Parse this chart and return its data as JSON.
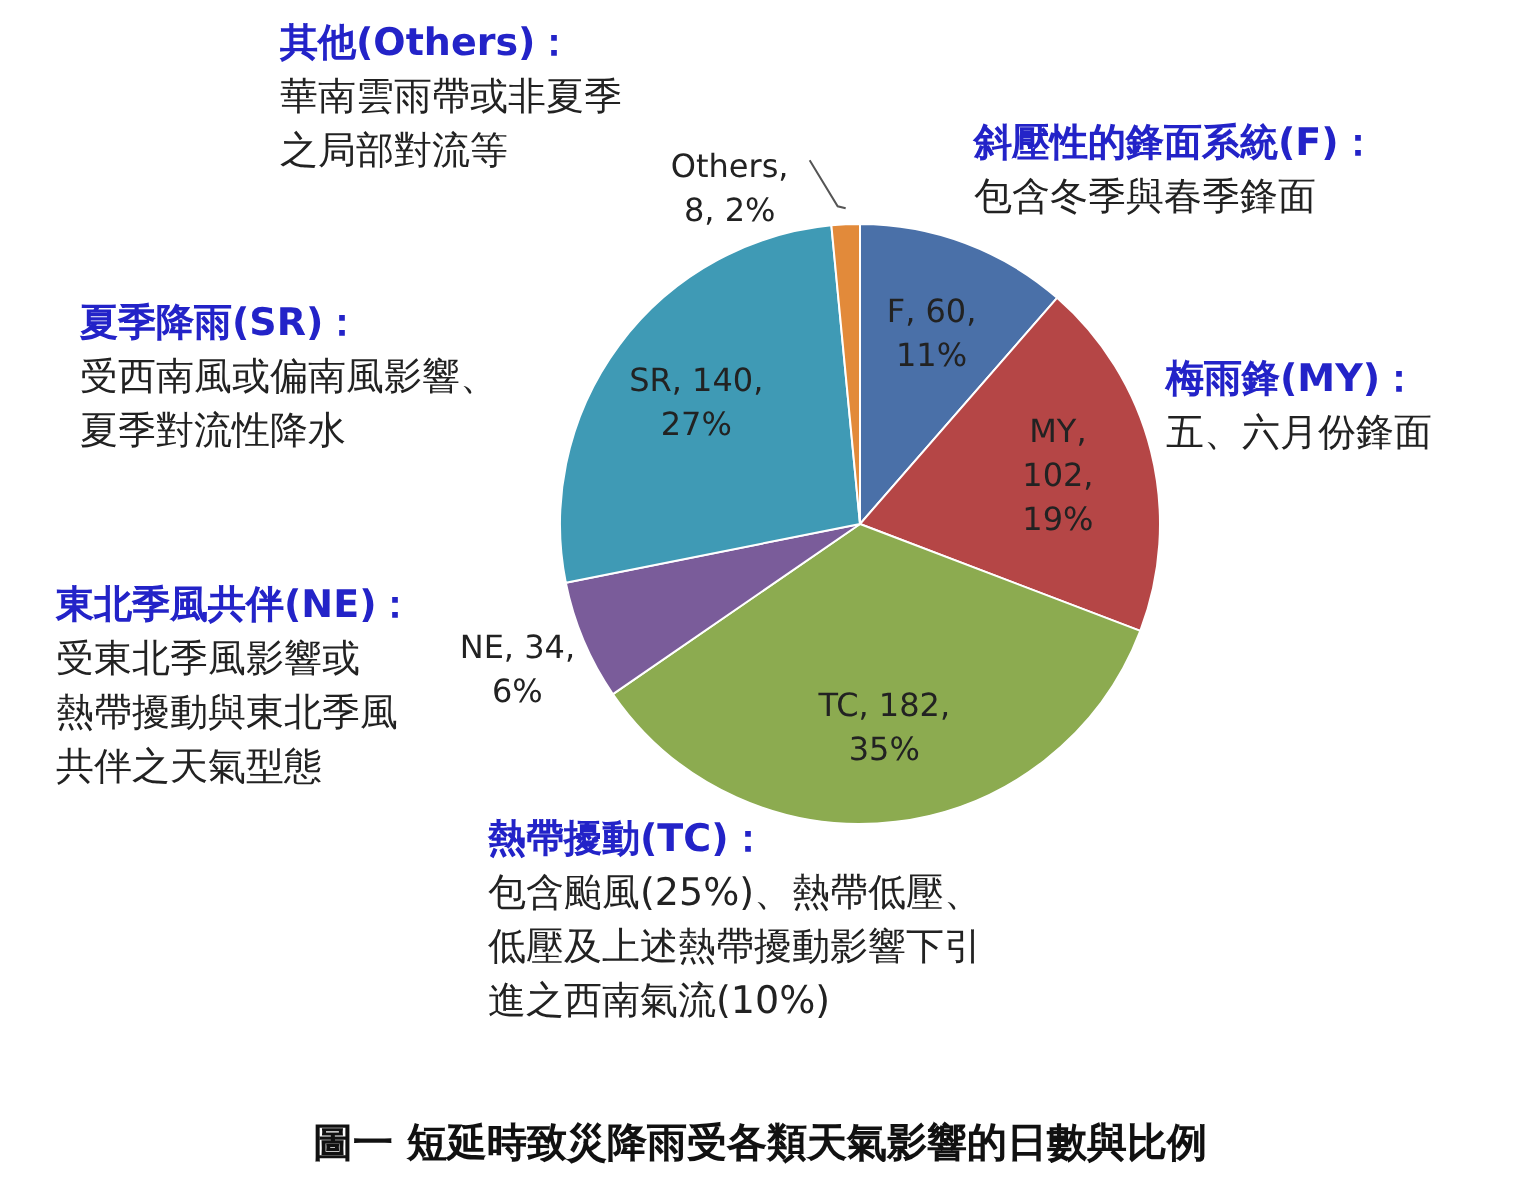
{
  "chart_data": {
    "type": "pie",
    "title": "圖一 短延時致災降雨受各類天氣影響的日數與比例",
    "categories": [
      "F",
      "MY",
      "TC",
      "NE",
      "SR",
      "Others"
    ],
    "values": [
      60,
      102,
      182,
      34,
      140,
      8
    ],
    "colors": [
      "#4a70a8",
      "#b54646",
      "#8cab50",
      "#7a5c9a",
      "#3f9ab5",
      "#e28a3a"
    ],
    "value_labels": [
      ", 60, 11%",
      ", 102, 19%",
      ", 182, 35%",
      ", 34, 6%",
      ", 140, 27%",
      ", 8, 2%"
    ],
    "annotations": [
      "其他(Others)：",
      "華南雲雨帶或非夏季",
      "之局部對流等",
      "斜壓性的鋒面系統(F)：",
      "包含冬季與春季鋒面",
      "梅雨鋒(MY)：",
      "五、六月份鋒面",
      "夏季降雨(SR)：",
      "受西南風或偏南風影響、",
      "夏季對流性降水",
      "東北季風共伴(NE)：",
      "受東北季風影響或",
      "熱帶擾動與東北季風",
      "共伴之天氣型態",
      "熱帶擾動(TC)：",
      "包含颱風(25%)、熱帶低壓、",
      "低壓及上述熱帶擾動影響下引",
      "進之西南氣流(10%)"
    ]
  }
}
